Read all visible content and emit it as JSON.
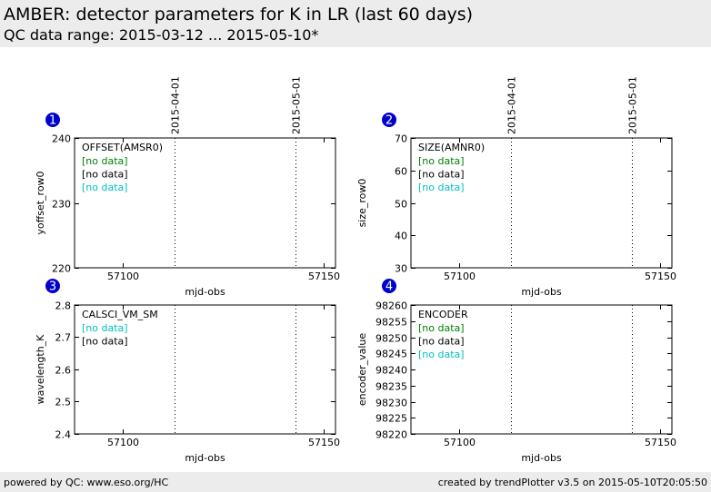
{
  "header": {
    "title": "AMBER: detector parameters for K in LR (last 60 days)",
    "subtitle": "QC data range: 2015-03-12 ... 2015-05-10*"
  },
  "footer": {
    "left": "powered by QC: www.eso.org/HC",
    "right": "created by trendPlotter v3.5 on 2015-05-10T20:05:50"
  },
  "colors": {
    "badge": "#0000cc",
    "green": "#008000",
    "black": "#000000",
    "cyan": "#00bfbf"
  },
  "chart_data": [
    {
      "type": "scatter",
      "badge": "1",
      "title": "OFFSET(AMSR0)",
      "xlabel": "mjd-obs",
      "ylabel": "yoffset_row0",
      "xlim": [
        57088,
        57153
      ],
      "ylim": [
        220,
        240
      ],
      "xticks": [
        57100,
        57150
      ],
      "yticks": [
        220,
        230,
        240
      ],
      "date_markers": [
        {
          "x": 57113,
          "label": "2015-04-01"
        },
        {
          "x": 57143,
          "label": "2015-05-01"
        }
      ],
      "series": [
        {
          "label": "[no data]",
          "color": "green",
          "values": []
        },
        {
          "label": "[no data]",
          "color": "black",
          "values": []
        },
        {
          "label": "[no data]",
          "color": "cyan",
          "values": []
        }
      ]
    },
    {
      "type": "scatter",
      "badge": "2",
      "title": "SIZE(AMNR0)",
      "xlabel": "mjd-obs",
      "ylabel": "size_row0",
      "xlim": [
        57088,
        57153
      ],
      "ylim": [
        30,
        70
      ],
      "xticks": [
        57100,
        57150
      ],
      "yticks": [
        30,
        40,
        50,
        60,
        70
      ],
      "date_markers": [
        {
          "x": 57113,
          "label": "2015-04-01"
        },
        {
          "x": 57143,
          "label": "2015-05-01"
        }
      ],
      "series": [
        {
          "label": "[no data]",
          "color": "green",
          "values": []
        },
        {
          "label": "[no data]",
          "color": "black",
          "values": []
        },
        {
          "label": "[no data]",
          "color": "cyan",
          "values": []
        }
      ]
    },
    {
      "type": "scatter",
      "badge": "3",
      "title": "CALSCI_VM_SM",
      "xlabel": "mjd-obs",
      "ylabel": "wavelength_K",
      "xlim": [
        57088,
        57153
      ],
      "ylim": [
        2.4,
        2.8
      ],
      "xticks": [
        57100,
        57150
      ],
      "yticks": [
        2.4,
        2.5,
        2.6,
        2.7,
        2.8
      ],
      "date_markers": [
        {
          "x": 57113,
          "label": ""
        },
        {
          "x": 57143,
          "label": ""
        }
      ],
      "series": [
        {
          "label": "[no data]",
          "color": "cyan",
          "values": []
        },
        {
          "label": "[no data]",
          "color": "black",
          "values": []
        }
      ]
    },
    {
      "type": "scatter",
      "badge": "4",
      "title": "ENCODER",
      "xlabel": "mjd-obs",
      "ylabel": "encoder_value",
      "xlim": [
        57088,
        57153
      ],
      "ylim": [
        98220,
        98260
      ],
      "xticks": [
        57100,
        57150
      ],
      "yticks": [
        98220,
        98225,
        98230,
        98235,
        98240,
        98245,
        98250,
        98255,
        98260
      ],
      "date_markers": [
        {
          "x": 57113,
          "label": ""
        },
        {
          "x": 57143,
          "label": ""
        }
      ],
      "series": [
        {
          "label": "[no data]",
          "color": "green",
          "values": []
        },
        {
          "label": "[no data]",
          "color": "black",
          "values": []
        },
        {
          "label": "[no data]",
          "color": "cyan",
          "values": []
        }
      ]
    }
  ]
}
